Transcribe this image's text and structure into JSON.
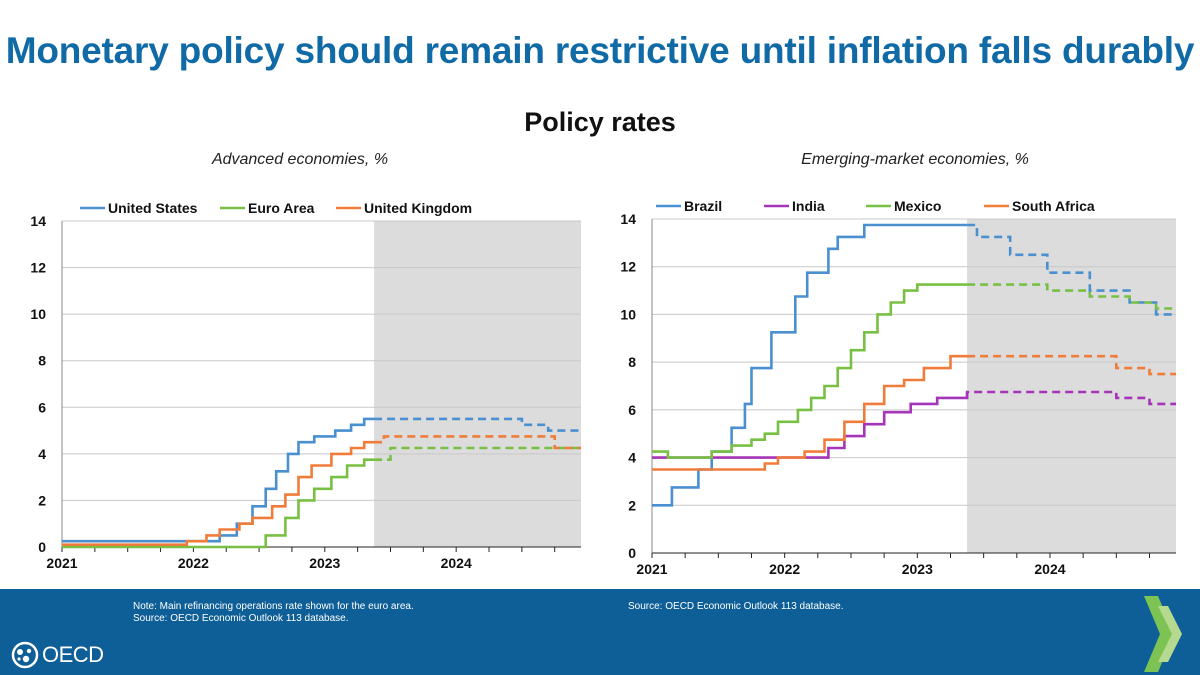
{
  "title": "Monetary policy should remain restrictive until inflation falls durably",
  "subtitle": "Policy rates",
  "footer": {
    "note_left_1": "Note: Main refinancing operations rate shown for the euro area.",
    "note_left_2": "Source: OECD Economic Outlook 113 database.",
    "note_right": "Source: OECD Economic Outlook 113 database.",
    "logo_text": "OECD"
  },
  "colors": {
    "blue": "#4a8fd0",
    "green": "#78c043",
    "orange": "#f07c3a",
    "purple": "#a634b8",
    "projection_shade": "#dcdcdc",
    "title_blue": "#0f6aa6",
    "footer_blue": "#0e5f97"
  },
  "chart_data": [
    {
      "type": "line",
      "step": true,
      "panel_title": "Advanced economies, %",
      "ylim": [
        0,
        14
      ],
      "yticks": [
        0,
        2,
        4,
        6,
        8,
        10,
        12,
        14
      ],
      "xlim": [
        2021,
        2024.95
      ],
      "xticks": [
        2021,
        2022,
        2023,
        2024
      ],
      "projection_start": 2023.375,
      "legend_position": "top",
      "series": [
        {
          "name": "United States",
          "color": "#4a8fd0",
          "x": [
            2021,
            2022.2,
            2022.33,
            2022.45,
            2022.55,
            2022.63,
            2022.72,
            2022.8,
            2022.92,
            2023.08,
            2023.2,
            2023.3,
            2023.375,
            2023.5,
            2024.5,
            2024.7,
            2024.95
          ],
          "y": [
            0.25,
            0.5,
            1.0,
            1.75,
            2.5,
            3.25,
            4.0,
            4.5,
            4.75,
            5.0,
            5.25,
            5.5,
            5.5,
            5.5,
            5.25,
            5.0,
            5.0
          ]
        },
        {
          "name": "Euro Area",
          "color": "#78c043",
          "x": [
            2021,
            2022.55,
            2022.7,
            2022.8,
            2022.92,
            2023.05,
            2023.17,
            2023.3,
            2023.375,
            2023.5,
            2024.95
          ],
          "y": [
            0,
            0.5,
            1.25,
            2.0,
            2.5,
            3.0,
            3.5,
            3.75,
            3.75,
            4.25,
            4.25
          ]
        },
        {
          "name": "United Kingdom",
          "color": "#f07c3a",
          "x": [
            2021,
            2021.95,
            2022.1,
            2022.2,
            2022.35,
            2022.45,
            2022.6,
            2022.7,
            2022.8,
            2022.9,
            2023.05,
            2023.2,
            2023.3,
            2023.375,
            2023.45,
            2024.5,
            2024.75,
            2024.95
          ],
          "y": [
            0.1,
            0.25,
            0.5,
            0.75,
            1.0,
            1.25,
            1.75,
            2.25,
            3.0,
            3.5,
            4.0,
            4.25,
            4.5,
            4.5,
            4.75,
            4.75,
            4.25,
            4.25
          ]
        }
      ]
    },
    {
      "type": "line",
      "step": true,
      "panel_title": "Emerging-market economies, %",
      "ylim": [
        0,
        14
      ],
      "yticks": [
        0,
        2,
        4,
        6,
        8,
        10,
        12,
        14
      ],
      "xlim": [
        2021,
        2024.95
      ],
      "xticks": [
        2021,
        2022,
        2023,
        2024
      ],
      "projection_start": 2023.375,
      "legend_position": "top",
      "series": [
        {
          "name": "Brazil",
          "color": "#4a8fd0",
          "x": [
            2021,
            2021.15,
            2021.35,
            2021.45,
            2021.6,
            2021.7,
            2021.75,
            2021.9,
            2022.08,
            2022.17,
            2022.33,
            2022.4,
            2022.6,
            2023.375,
            2023.45,
            2023.7,
            2023.98,
            2024.3,
            2024.6,
            2024.8,
            2024.95
          ],
          "y": [
            2.0,
            2.75,
            3.5,
            4.25,
            5.25,
            6.25,
            7.75,
            9.25,
            10.75,
            11.75,
            12.75,
            13.25,
            13.75,
            13.75,
            13.25,
            12.5,
            11.75,
            11.0,
            10.5,
            10.0,
            10.0
          ]
        },
        {
          "name": "India",
          "color": "#a634b8",
          "x": [
            2021,
            2022.33,
            2022.45,
            2022.6,
            2022.75,
            2022.95,
            2023.15,
            2023.375,
            2024.5,
            2024.75,
            2024.95
          ],
          "y": [
            4.0,
            4.4,
            4.9,
            5.4,
            5.9,
            6.25,
            6.5,
            6.75,
            6.5,
            6.25,
            6.25
          ]
        },
        {
          "name": "Mexico",
          "color": "#78c043",
          "x": [
            2021,
            2021.12,
            2021.45,
            2021.6,
            2021.75,
            2021.85,
            2021.95,
            2022.1,
            2022.2,
            2022.3,
            2022.4,
            2022.5,
            2022.6,
            2022.7,
            2022.8,
            2022.9,
            2023.0,
            2023.1,
            2023.22,
            2023.375,
            2023.5,
            2023.98,
            2024.3,
            2024.6,
            2024.8,
            2024.95
          ],
          "y": [
            4.25,
            4.0,
            4.25,
            4.5,
            4.75,
            5.0,
            5.5,
            6.0,
            6.5,
            7.0,
            7.75,
            8.5,
            9.25,
            10.0,
            10.5,
            11.0,
            11.25,
            11.25,
            11.25,
            11.25,
            11.25,
            11.0,
            10.75,
            10.5,
            10.25,
            10.25
          ]
        },
        {
          "name": "South Africa",
          "color": "#f07c3a",
          "x": [
            2021,
            2021.85,
            2021.95,
            2022.15,
            2022.3,
            2022.45,
            2022.6,
            2022.75,
            2022.9,
            2023.05,
            2023.25,
            2023.375,
            2024.5,
            2024.75,
            2024.95
          ],
          "y": [
            3.5,
            3.75,
            4.0,
            4.25,
            4.75,
            5.5,
            6.25,
            7.0,
            7.25,
            7.75,
            8.25,
            8.25,
            7.75,
            7.5,
            7.5
          ]
        }
      ]
    }
  ]
}
